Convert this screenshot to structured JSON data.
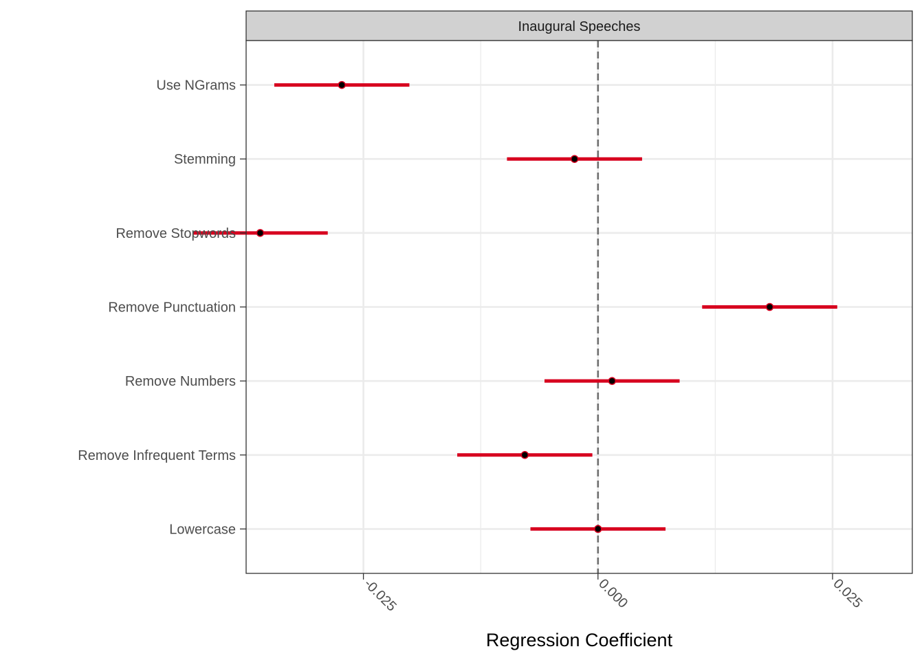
{
  "chart_data": {
    "type": "coefficient-plot",
    "facet_title": "Inaugural Speeches",
    "xlabel": "Regression Coefficient",
    "ylabel": "",
    "xlim": [
      -0.0375,
      0.0335
    ],
    "x_ticks": [
      -0.025,
      0.0,
      0.025
    ],
    "x_tick_labels": [
      "-0.025",
      "0.000",
      "0.025"
    ],
    "x_minor_gridlines": [
      -0.0375,
      -0.0125,
      0.0125
    ],
    "reference_line": 0.0,
    "grid": true,
    "categories": [
      "Use NGrams",
      "Stemming",
      "Remove Stopwords",
      "Remove Punctuation",
      "Remove Numbers",
      "Remove Infrequent Terms",
      "Lowercase"
    ],
    "series": [
      {
        "estimates": [
          -0.0273,
          -0.0025,
          -0.036,
          0.0183,
          0.0015,
          -0.0078,
          0.0
        ],
        "lower": [
          -0.0345,
          -0.0097,
          -0.0431,
          0.0111,
          -0.0057,
          -0.015,
          -0.0072
        ],
        "upper": [
          -0.0201,
          0.0047,
          -0.0288,
          0.0255,
          0.0087,
          -0.0006,
          0.0072
        ]
      }
    ],
    "colors": {
      "interval": "#d7001f",
      "point_fill": "#000000",
      "reference_line": "#6e6e6e",
      "strip_background": "#d1d1d1"
    }
  }
}
